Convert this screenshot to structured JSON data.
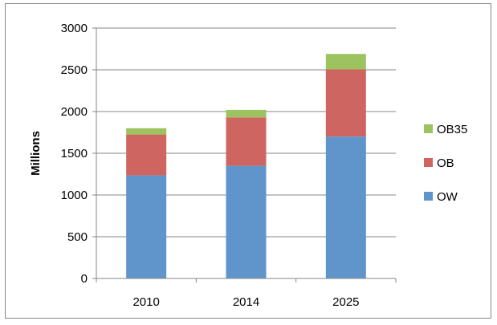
{
  "chart_data": {
    "type": "bar",
    "stacked": true,
    "title": "",
    "xlabel": "",
    "ylabel": "Millions",
    "categories": [
      "2010",
      "2014",
      "2025"
    ],
    "ylim": [
      0,
      3000
    ],
    "yticks": [
      0,
      500,
      1000,
      1500,
      2000,
      2500,
      3000
    ],
    "grid": true,
    "legend_position": "right",
    "series": [
      {
        "name": "OW",
        "color": "#6095cc",
        "values": [
          1235,
          1350,
          1700
        ]
      },
      {
        "name": "OB",
        "color": "#cf6560",
        "values": [
          490,
          580,
          805
        ]
      },
      {
        "name": "OB35",
        "color": "#9cc35f",
        "values": [
          75,
          90,
          185
        ]
      }
    ],
    "legend_order": [
      "OB35",
      "OB",
      "OW"
    ]
  }
}
